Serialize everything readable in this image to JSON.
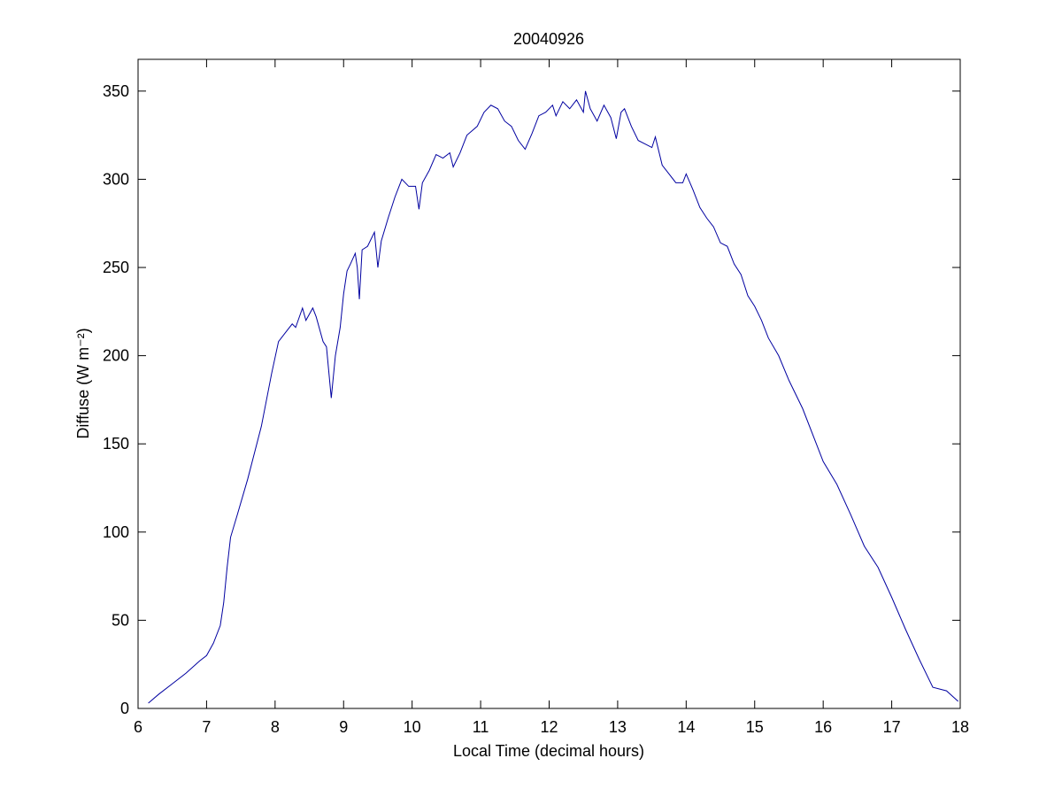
{
  "chart_data": {
    "type": "line",
    "title": "20040926",
    "x_label": "Local Time (decimal hours)",
    "y_label": "Diffuse (W m⁻²)",
    "xlim": [
      6,
      18
    ],
    "xticks": [
      6,
      7,
      8,
      9,
      10,
      11,
      12,
      13,
      14,
      15,
      16,
      17,
      18
    ],
    "ylim": [
      0,
      368
    ],
    "yticks": [
      0,
      50,
      100,
      150,
      200,
      250,
      300,
      350
    ],
    "grid": false,
    "series": [
      {
        "color": "#0000a0",
        "x": [
          6.15,
          6.3,
          6.5,
          6.7,
          6.9,
          7.0,
          7.1,
          7.2,
          7.25,
          7.3,
          7.35,
          7.45,
          7.6,
          7.8,
          7.95,
          8.05,
          8.15,
          8.25,
          8.3,
          8.4,
          8.45,
          8.55,
          8.6,
          8.7,
          8.75,
          8.82,
          8.88,
          8.95,
          9.0,
          9.05,
          9.1,
          9.17,
          9.2,
          9.23,
          9.27,
          9.35,
          9.45,
          9.5,
          9.55,
          9.65,
          9.75,
          9.85,
          9.95,
          10.05,
          10.1,
          10.15,
          10.25,
          10.35,
          10.45,
          10.55,
          10.6,
          10.7,
          10.8,
          10.95,
          11.05,
          11.15,
          11.25,
          11.35,
          11.45,
          11.55,
          11.65,
          11.75,
          11.85,
          11.95,
          12.05,
          12.1,
          12.2,
          12.3,
          12.4,
          12.5,
          12.53,
          12.6,
          12.7,
          12.8,
          12.9,
          12.98,
          13.05,
          13.1,
          13.2,
          13.3,
          13.4,
          13.5,
          13.55,
          13.65,
          13.75,
          13.85,
          13.95,
          14.0,
          14.1,
          14.2,
          14.3,
          14.4,
          14.5,
          14.6,
          14.7,
          14.8,
          14.9,
          15.0,
          15.1,
          15.2,
          15.35,
          15.5,
          15.7,
          15.9,
          16.0,
          16.2,
          16.4,
          16.6,
          16.8,
          17.0,
          17.2,
          17.4,
          17.6,
          17.8,
          17.97
        ],
        "values": [
          3,
          8,
          14,
          20,
          27,
          30,
          37,
          47,
          60,
          80,
          97,
          110,
          130,
          160,
          190,
          208,
          213,
          218,
          216,
          227,
          220,
          227,
          222,
          208,
          205,
          176,
          200,
          216,
          235,
          248,
          252,
          258,
          250,
          232,
          260,
          262,
          270,
          250,
          265,
          278,
          290,
          300,
          296,
          296,
          283,
          298,
          305,
          314,
          312,
          315,
          307,
          315,
          325,
          330,
          338,
          342,
          340,
          333,
          330,
          322,
          317,
          326,
          336,
          338,
          342,
          336,
          344,
          340,
          345,
          338,
          350,
          340,
          333,
          342,
          335,
          323,
          338,
          340,
          330,
          322,
          320,
          318,
          324,
          308,
          303,
          298,
          298,
          303,
          294,
          284,
          278,
          273,
          264,
          262,
          252,
          246,
          234,
          228,
          220,
          210,
          200,
          186,
          170,
          150,
          140,
          127,
          110,
          92,
          80,
          63,
          45,
          28,
          12,
          10,
          4
        ]
      }
    ]
  }
}
